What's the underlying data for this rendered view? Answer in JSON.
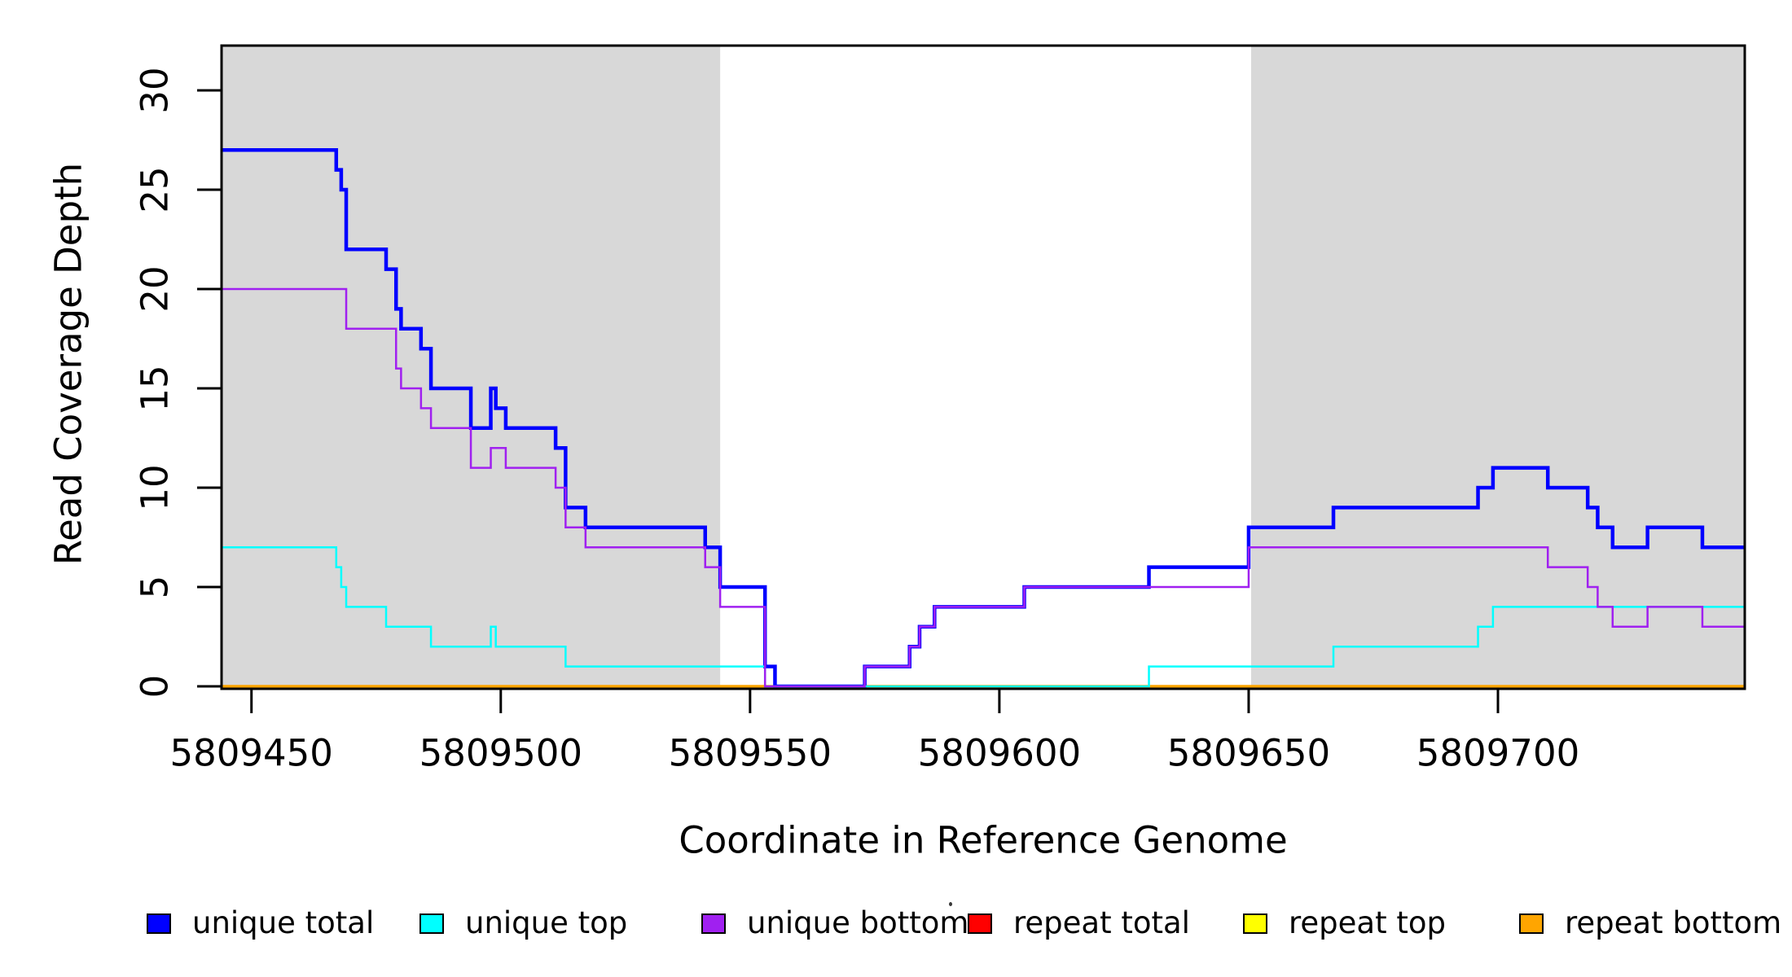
{
  "chart_data": {
    "type": "line",
    "subtype": "step-after",
    "title": "",
    "xlabel": "Coordinate in Reference Genome",
    "ylabel": "Read Coverage Depth",
    "xlim": [
      5809444,
      5809749.5
    ],
    "ylim": [
      0,
      32
    ],
    "x_ticks": [
      5809450,
      5809500,
      5809550,
      5809600,
      5809650,
      5809700
    ],
    "y_ticks": [
      0,
      5,
      10,
      15,
      20,
      25,
      30
    ],
    "grid": "off",
    "legend_position": "bottom",
    "background_color": "#FFFFFF",
    "axis_color": "#000000",
    "shaded_regions": {
      "meaning": "repeat regions",
      "color": "#D8D8D8",
      "ranges": [
        [
          5809444,
          5809544
        ],
        [
          5809650.5,
          5809749.5
        ]
      ]
    },
    "series": [
      {
        "name": "repeat total",
        "color": "#FF0000",
        "width": 3,
        "steps": [
          [
            5809444,
            0
          ]
        ]
      },
      {
        "name": "repeat top",
        "color": "#FFFF00",
        "width": 3,
        "steps": [
          [
            5809444,
            0
          ]
        ]
      },
      {
        "name": "repeat bottom",
        "color": "#FFA500",
        "width": 3.5,
        "steps": [
          [
            5809444,
            0
          ]
        ]
      },
      {
        "name": "unique total",
        "color": "#0000FF",
        "width": 4.5,
        "steps": [
          [
            5809444,
            27
          ],
          [
            5809467,
            26
          ],
          [
            5809468,
            25
          ],
          [
            5809469,
            22
          ],
          [
            5809477,
            21
          ],
          [
            5809479,
            19
          ],
          [
            5809480,
            18
          ],
          [
            5809484,
            17
          ],
          [
            5809486,
            15
          ],
          [
            5809494,
            13
          ],
          [
            5809498,
            15
          ],
          [
            5809499,
            14
          ],
          [
            5809501,
            13
          ],
          [
            5809511,
            12
          ],
          [
            5809513,
            9
          ],
          [
            5809517,
            8
          ],
          [
            5809541,
            7
          ],
          [
            5809544,
            5
          ],
          [
            5809553,
            1
          ],
          [
            5809555,
            0
          ],
          [
            5809573,
            1
          ],
          [
            5809582,
            2
          ],
          [
            5809584,
            3
          ],
          [
            5809587,
            4
          ],
          [
            5809605,
            5
          ],
          [
            5809630,
            6
          ],
          [
            5809650,
            8
          ],
          [
            5809667,
            9
          ],
          [
            5809696,
            10
          ],
          [
            5809699,
            11
          ],
          [
            5809710,
            10
          ],
          [
            5809718,
            9
          ],
          [
            5809720,
            8
          ],
          [
            5809723,
            7
          ],
          [
            5809730,
            8
          ],
          [
            5809741,
            7
          ]
        ]
      },
      {
        "name": "unique top",
        "color": "#00FFFF",
        "width": 2.5,
        "steps": [
          [
            5809444,
            7
          ],
          [
            5809467,
            6
          ],
          [
            5809468,
            5
          ],
          [
            5809469,
            4
          ],
          [
            5809477,
            3
          ],
          [
            5809486,
            2
          ],
          [
            5809498,
            3
          ],
          [
            5809499,
            2
          ],
          [
            5809513,
            1
          ],
          [
            5809553,
            0
          ],
          [
            5809630,
            1
          ],
          [
            5809667,
            2
          ],
          [
            5809696,
            3
          ],
          [
            5809699,
            4
          ]
        ]
      },
      {
        "name": "unique bottom",
        "color": "#A020F0",
        "width": 2.5,
        "steps": [
          [
            5809444,
            20
          ],
          [
            5809469,
            18
          ],
          [
            5809479,
            16
          ],
          [
            5809480,
            15
          ],
          [
            5809484,
            14
          ],
          [
            5809486,
            13
          ],
          [
            5809494,
            11
          ],
          [
            5809498,
            12
          ],
          [
            5809501,
            11
          ],
          [
            5809511,
            10
          ],
          [
            5809513,
            8
          ],
          [
            5809517,
            7
          ],
          [
            5809541,
            6
          ],
          [
            5809544,
            4
          ],
          [
            5809553,
            0
          ],
          [
            5809573,
            1
          ],
          [
            5809582,
            2
          ],
          [
            5809584,
            3
          ],
          [
            5809587,
            4
          ],
          [
            5809605,
            5
          ],
          [
            5809650,
            7
          ],
          [
            5809710,
            6
          ],
          [
            5809718,
            5
          ],
          [
            5809720,
            4
          ],
          [
            5809723,
            3
          ],
          [
            5809730,
            4
          ],
          [
            5809741,
            3
          ]
        ]
      }
    ]
  },
  "legend": {
    "items": [
      {
        "label": "unique total",
        "color": "#0000FF"
      },
      {
        "label": "unique top",
        "color": "#00FFFF"
      },
      {
        "label": "unique bottom",
        "color": "#A020F0"
      },
      {
        "label": "repeat total",
        "color": "#FF0000"
      },
      {
        "label": "repeat top",
        "color": "#FFFF00"
      },
      {
        "label": "repeat bottom",
        "color": "#FFA500"
      }
    ]
  }
}
